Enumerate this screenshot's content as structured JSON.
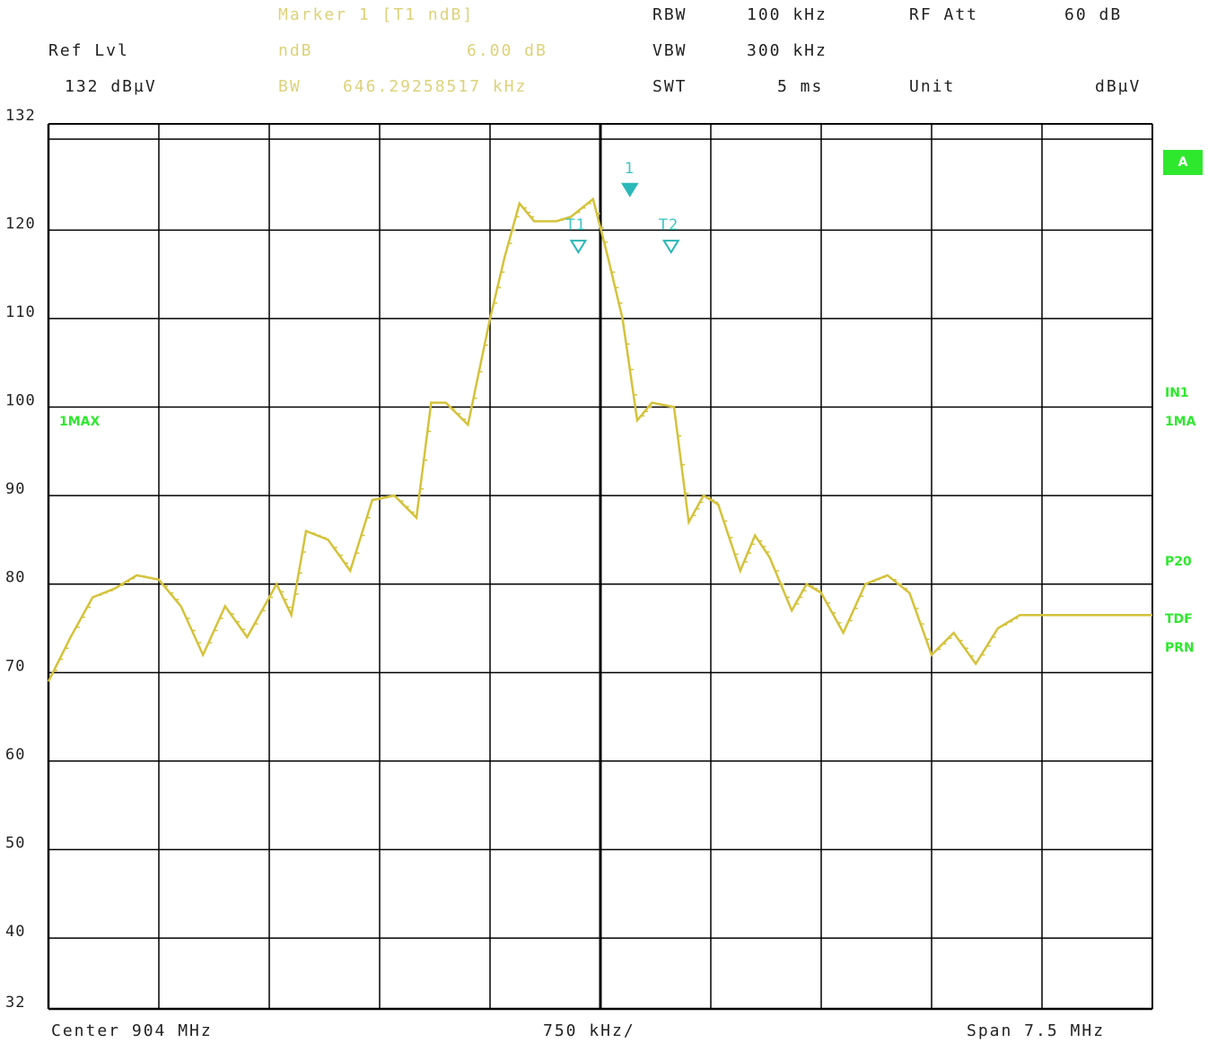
{
  "header": {
    "marker_title": "Marker 1 [T1 ndB]",
    "ndb_label": "ndB",
    "ndb_value": "6.00 dB",
    "bw_label": "BW",
    "bw_value": "646.29258517 kHz",
    "rbw_label": "RBW",
    "rbw_value": "100 kHz",
    "vbw_label": "VBW",
    "vbw_value": "300 kHz",
    "swt_label": "SWT",
    "swt_value": "5 ms",
    "rfatt_label": "RF Att",
    "rfatt_value": "60 dB",
    "unit_label": "Unit",
    "unit_value": "dBµV",
    "reflvl_label": "Ref Lvl",
    "reflvl_value": "132 dBµV"
  },
  "footer": {
    "center": "Center 904 MHz",
    "per_div": "750 kHz/",
    "span": "Span 7.5 MHz"
  },
  "side_labels": {
    "trace_left": "1MAX",
    "badge": "A",
    "right_in1": "IN1",
    "right_1ma": "1MA",
    "right_p20": "P20",
    "right_tdf": "TDF",
    "right_prn": "PRN"
  },
  "markers": {
    "m1": "1",
    "t1": "T1",
    "t2": "T2"
  },
  "colors": {
    "trace": "#d4c23a",
    "marker": "#2bb8b8",
    "grid": "#000000",
    "status": "#2ee82e"
  },
  "chart_data": {
    "type": "line",
    "title": "",
    "xlabel": "",
    "ylabel": "",
    "ylim": [
      32,
      132
    ],
    "yticks": [
      132,
      120,
      110,
      100,
      90,
      80,
      70,
      60,
      50,
      40,
      32
    ],
    "x_unit": "MHz",
    "xlim": [
      900.25,
      907.75
    ],
    "grid": true,
    "series": [
      {
        "x": [
          900.25,
          900.4,
          900.55,
          900.7,
          900.85,
          901.0,
          901.15,
          901.3,
          901.45,
          901.6,
          901.8,
          901.9,
          902.0,
          902.15,
          902.3,
          902.45,
          902.6,
          902.75,
          902.85,
          902.95,
          903.1,
          903.25,
          903.35,
          903.45,
          903.55,
          903.7,
          903.8,
          903.95,
          904.05,
          904.15,
          904.25,
          904.35,
          904.5,
          904.6,
          904.7,
          904.8,
          904.95,
          905.05,
          905.15,
          905.3,
          905.4,
          905.5,
          905.65,
          905.8,
          905.95,
          906.1,
          906.25,
          906.4,
          906.55,
          906.7,
          906.85,
          907.0,
          907.15,
          907.3,
          907.45,
          907.6,
          907.75
        ],
        "y": [
          69,
          74,
          78.5,
          79.5,
          81,
          80.5,
          77.5,
          72,
          77.5,
          74,
          80,
          76.5,
          86,
          85,
          81.5,
          89.5,
          90,
          87.5,
          100.5,
          100.5,
          98,
          110,
          117,
          123,
          121,
          121,
          121.5,
          123.5,
          117,
          110,
          98.5,
          100.5,
          100,
          87,
          90,
          89,
          81.5,
          85.5,
          83,
          77,
          80,
          79,
          74.5,
          80,
          81,
          79,
          72,
          74.5,
          71,
          75,
          76.5,
          76.5,
          76.5,
          76.5,
          76.5,
          76.5,
          76.5
        ]
      }
    ],
    "annotations": [
      {
        "label": "1",
        "x": 904.2,
        "y": 123.5
      },
      {
        "label": "T1",
        "x": 903.85,
        "y": 118.3
      },
      {
        "label": "T2",
        "x": 904.48,
        "y": 118.3
      }
    ]
  }
}
